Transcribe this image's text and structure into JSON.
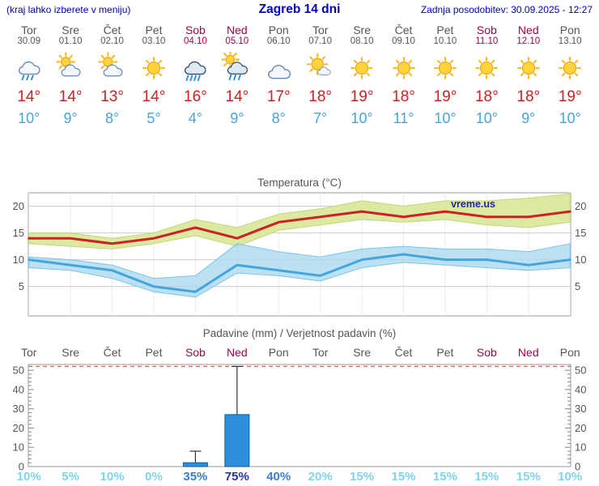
{
  "header": {
    "left": "(kraj lahko izberete v meniju)",
    "title": "Zagreb 14 dni",
    "right": "Zadnja posodobitev: 30.09.2025 - 12:27"
  },
  "colors": {
    "header_blue": "#0000cc",
    "weekday": "#555555",
    "weekend": "#a0054a",
    "temp_max": "#cc2222",
    "temp_min": "#45a5dd",
    "band_max_fill": "#dce9a0",
    "band_max_edge": "#c3d678",
    "band_min_fill": "#a9d9f0",
    "band_min_edge": "#7cc4e8",
    "bar_fill": "#2b8fdc",
    "bar_border": "#0b5ea8",
    "prob_low": "#7fd4ef",
    "prob_mid": "#3a7fd0",
    "prob_high": "#2233aa",
    "dashed_line": "#e06565"
  },
  "forecast": {
    "days": [
      {
        "name": "Tor",
        "date": "30.09",
        "weekend": false,
        "icon": "showers",
        "tmax": "14°",
        "tmin": "10°"
      },
      {
        "name": "Sre",
        "date": "01.10",
        "weekend": false,
        "icon": "partly-cloudy",
        "tmax": "14°",
        "tmin": "9°"
      },
      {
        "name": "Čet",
        "date": "02.10",
        "weekend": false,
        "icon": "partly-cloudy",
        "tmax": "13°",
        "tmin": "8°"
      },
      {
        "name": "Pet",
        "date": "03.10",
        "weekend": false,
        "icon": "sunny",
        "tmax": "14°",
        "tmin": "5°"
      },
      {
        "name": "Sob",
        "date": "04.10",
        "weekend": true,
        "icon": "rain",
        "tmax": "16°",
        "tmin": "4°"
      },
      {
        "name": "Ned",
        "date": "05.10",
        "weekend": true,
        "icon": "sun-showers",
        "tmax": "14°",
        "tmin": "9°"
      },
      {
        "name": "Pon",
        "date": "06.10",
        "weekend": false,
        "icon": "cloudy",
        "tmax": "17°",
        "tmin": "8°"
      },
      {
        "name": "Tor",
        "date": "07.10",
        "weekend": false,
        "icon": "mostly-sunny",
        "tmax": "18°",
        "tmin": "7°"
      },
      {
        "name": "Sre",
        "date": "08.10",
        "weekend": false,
        "icon": "sunny",
        "tmax": "19°",
        "tmin": "10°"
      },
      {
        "name": "Čet",
        "date": "09.10",
        "weekend": false,
        "icon": "sunny",
        "tmax": "18°",
        "tmin": "11°"
      },
      {
        "name": "Pet",
        "date": "10.10",
        "weekend": false,
        "icon": "sunny",
        "tmax": "19°",
        "tmin": "10°"
      },
      {
        "name": "Sob",
        "date": "11.10",
        "weekend": true,
        "icon": "sunny",
        "tmax": "18°",
        "tmin": "10°"
      },
      {
        "name": "Ned",
        "date": "12.10",
        "weekend": true,
        "icon": "sunny",
        "tmax": "18°",
        "tmin": "9°"
      },
      {
        "name": "Pon",
        "date": "13.10",
        "weekend": false,
        "icon": "sunny",
        "tmax": "19°",
        "tmin": "10°"
      }
    ]
  },
  "chart_data": [
    {
      "type": "line",
      "title": "Temperatura (°C)",
      "watermark": "vreme.us",
      "x_labels": [
        "Tor",
        "Sre",
        "Čet",
        "Pet",
        "Sob",
        "Ned",
        "Pon",
        "Tor",
        "Sre",
        "Čet",
        "Pet",
        "Sob",
        "Ned",
        "Pon"
      ],
      "y_ticks": [
        5,
        10,
        15,
        20
      ],
      "ylim": [
        -0.5,
        22.5
      ],
      "grid": true,
      "series": [
        {
          "name": "temp-max",
          "values": [
            14,
            14,
            13,
            14,
            16,
            14,
            17,
            18,
            19,
            18,
            19,
            18,
            18,
            19
          ]
        },
        {
          "name": "temp-min",
          "values": [
            10,
            9,
            8,
            5,
            4,
            9,
            8,
            7,
            10,
            11,
            10,
            10,
            9,
            10
          ]
        }
      ],
      "bands": [
        {
          "name": "temp-max-range",
          "upper": [
            15,
            15,
            14,
            15,
            17.5,
            16,
            18.5,
            19.5,
            21,
            20,
            21,
            21,
            21.5,
            22.3
          ],
          "lower": [
            13,
            12.5,
            12,
            13,
            14.5,
            12.5,
            15.5,
            16.5,
            17.5,
            17,
            17.5,
            16.5,
            16,
            17
          ]
        },
        {
          "name": "temp-min-range",
          "upper": [
            10.5,
            10,
            9,
            6.5,
            7,
            13,
            11.5,
            10.5,
            12,
            12.5,
            12,
            12,
            11.5,
            13
          ],
          "lower": [
            8.5,
            8,
            6.5,
            4,
            3,
            7.5,
            7,
            6,
            8.5,
            9.5,
            9,
            8.5,
            8,
            8.5
          ]
        }
      ]
    },
    {
      "type": "bar",
      "title": "Padavine (mm) / Verjetnost padavin (%)",
      "x_labels": [
        "Tor",
        "Sre",
        "Čet",
        "Pet",
        "Sob",
        "Ned",
        "Pon",
        "Tor",
        "Sre",
        "Čet",
        "Pet",
        "Sob",
        "Ned",
        "Pon"
      ],
      "y_ticks": [
        0,
        10,
        20,
        30,
        40,
        50
      ],
      "ylim": [
        0,
        53
      ],
      "values_mm": [
        0,
        0,
        0,
        0,
        2,
        27,
        0,
        0,
        0,
        0,
        0,
        0,
        0,
        0
      ],
      "whisker_mm": [
        0,
        0,
        0,
        0,
        8,
        52,
        0,
        0,
        0,
        0,
        0,
        0,
        0,
        0
      ],
      "prob_percent": [
        10,
        5,
        10,
        0,
        35,
        75,
        40,
        20,
        15,
        15,
        15,
        15,
        15,
        10
      ],
      "prob_labels": [
        "10%",
        "5%",
        "10%",
        "0%",
        "35%",
        "75%",
        "40%",
        "20%",
        "15%",
        "15%",
        "15%",
        "15%",
        "15%",
        "10%"
      ]
    }
  ]
}
